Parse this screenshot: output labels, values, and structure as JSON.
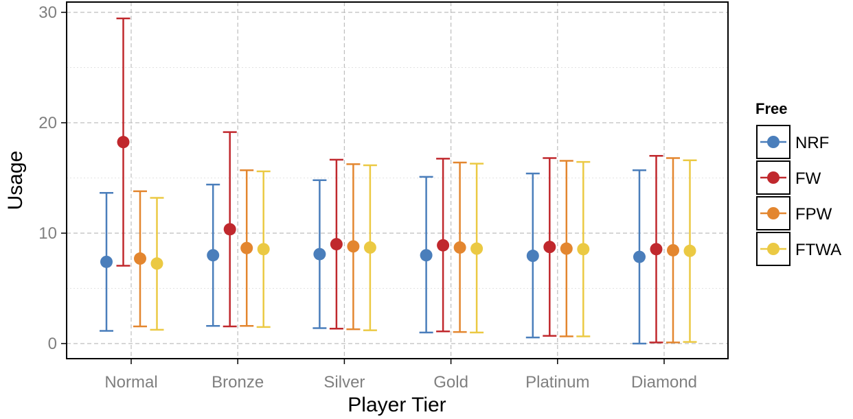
{
  "chart_data": {
    "type": "errorbar",
    "title": "",
    "xlabel": "Player Tier",
    "ylabel": "Usage",
    "categories": [
      "Normal",
      "Bronze",
      "Silver",
      "Gold",
      "Platinum",
      "Diamond"
    ],
    "ylim": [
      -1.5,
      31
    ],
    "yticks": [
      0,
      10,
      20,
      30
    ],
    "grid": true,
    "legend": {
      "title": "Free",
      "position": "right"
    },
    "series": [
      {
        "name": "NRF",
        "color": "#4a7ebb",
        "mean": [
          7.4,
          8.0,
          8.1,
          8.0,
          7.95,
          7.85
        ],
        "lower": [
          1.15,
          1.6,
          1.4,
          1.0,
          0.55,
          0.0
        ],
        "upper": [
          13.65,
          14.4,
          14.8,
          15.1,
          15.4,
          15.7
        ]
      },
      {
        "name": "FW",
        "color": "#c0282d",
        "mean": [
          18.25,
          10.35,
          9.0,
          8.9,
          8.75,
          8.55
        ],
        "lower": [
          7.05,
          1.55,
          1.35,
          1.1,
          0.7,
          0.1
        ],
        "upper": [
          29.45,
          19.15,
          16.65,
          16.75,
          16.8,
          17.0
        ]
      },
      {
        "name": "FPW",
        "color": "#e3862f",
        "mean": [
          7.7,
          8.65,
          8.8,
          8.7,
          8.6,
          8.45
        ],
        "lower": [
          1.55,
          1.6,
          1.3,
          1.05,
          0.65,
          0.1
        ],
        "upper": [
          13.8,
          15.7,
          16.25,
          16.4,
          16.55,
          16.8
        ]
      },
      {
        "name": "FTWA",
        "color": "#ebc943",
        "mean": [
          7.25,
          8.55,
          8.7,
          8.6,
          8.55,
          8.4
        ],
        "lower": [
          1.25,
          1.5,
          1.2,
          1.0,
          0.65,
          0.15
        ],
        "upper": [
          13.2,
          15.6,
          16.15,
          16.3,
          16.45,
          16.6
        ]
      }
    ]
  }
}
